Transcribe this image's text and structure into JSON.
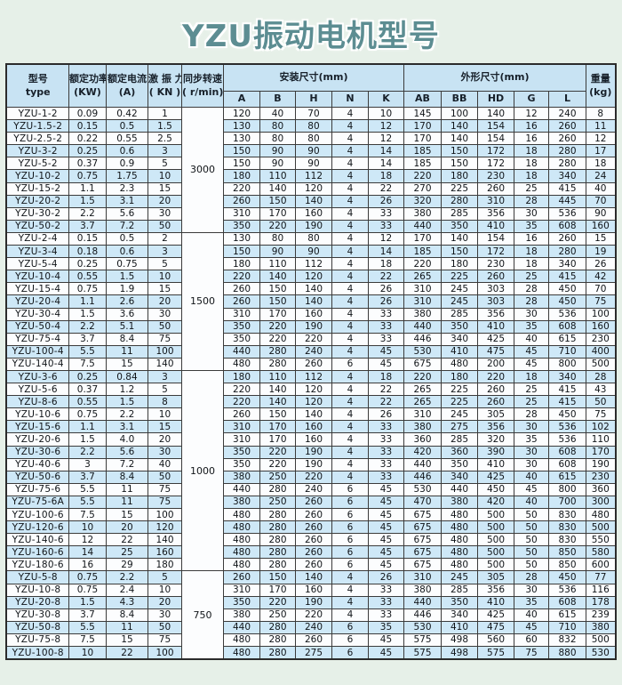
{
  "title": "YZU振动电机型号",
  "colors": {
    "page_background": "#e6f0e8",
    "title_color": "#5c8d92",
    "header_bg": "#c8e3f3",
    "row_alt_bg": "#cee8f7",
    "row_bg": "#fcfdfe",
    "border": "#3b3b3b"
  },
  "table": {
    "header": {
      "model": [
        "型号",
        "type"
      ],
      "power": [
        "额定功率",
        "(KW)"
      ],
      "current": [
        "额定电流",
        "(A)"
      ],
      "force": [
        "激 振 力",
        "( KN )"
      ],
      "speed": [
        "同步转速",
        "( r/min)"
      ],
      "install_group": "安装尺寸(mm)",
      "install_cols": [
        "A",
        "B",
        "H",
        "N",
        "K"
      ],
      "outline_group": "外形尺寸(mm)",
      "outline_cols": [
        "AB",
        "BB",
        "HD",
        "G",
        "L"
      ],
      "weight": [
        "重量",
        "(kg)"
      ]
    },
    "groups": [
      {
        "speed": "3000",
        "rows": [
          [
            "YZU-1-2",
            "0.09",
            "0.42",
            "1",
            "120",
            "40",
            "70",
            "4",
            "10",
            "145",
            "100",
            "140",
            "12",
            "240",
            "8"
          ],
          [
            "YZU-1.5-2",
            "0.15",
            "0.5",
            "1.5",
            "130",
            "80",
            "80",
            "4",
            "12",
            "170",
            "140",
            "154",
            "16",
            "260",
            "11"
          ],
          [
            "YZU-2.5-2",
            "0.22",
            "0.55",
            "2.5",
            "130",
            "80",
            "80",
            "4",
            "12",
            "170",
            "140",
            "154",
            "16",
            "260",
            "12"
          ],
          [
            "YZU-3-2",
            "0.25",
            "0.6",
            "3",
            "150",
            "90",
            "90",
            "4",
            "14",
            "185",
            "150",
            "172",
            "18",
            "280",
            "17"
          ],
          [
            "YZU-5-2",
            "0.37",
            "0.9",
            "5",
            "150",
            "90",
            "90",
            "4",
            "14",
            "185",
            "150",
            "172",
            "18",
            "280",
            "18"
          ],
          [
            "YZU-10-2",
            "0.75",
            "1.75",
            "10",
            "180",
            "110",
            "112",
            "4",
            "18",
            "220",
            "180",
            "230",
            "18",
            "340",
            "24"
          ],
          [
            "YZU-15-2",
            "1.1",
            "2.3",
            "15",
            "220",
            "140",
            "120",
            "4",
            "22",
            "270",
            "225",
            "260",
            "25",
            "415",
            "40"
          ],
          [
            "YZU-20-2",
            "1.5",
            "3.1",
            "20",
            "260",
            "150",
            "140",
            "4",
            "26",
            "320",
            "280",
            "310",
            "28",
            "445",
            "70"
          ],
          [
            "YZU-30-2",
            "2.2",
            "5.6",
            "30",
            "310",
            "170",
            "160",
            "4",
            "33",
            "380",
            "285",
            "356",
            "30",
            "536",
            "90"
          ],
          [
            "YZU-50-2",
            "3.7",
            "7.2",
            "50",
            "350",
            "220",
            "190",
            "4",
            "33",
            "440",
            "350",
            "410",
            "35",
            "608",
            "160"
          ]
        ]
      },
      {
        "speed": "1500",
        "rows": [
          [
            "YZU-2-4",
            "0.15",
            "0.5",
            "2",
            "130",
            "80",
            "80",
            "4",
            "12",
            "170",
            "140",
            "154",
            "16",
            "260",
            "15"
          ],
          [
            "YZU-3-4",
            "0.18",
            "0.6",
            "3",
            "150",
            "90",
            "90",
            "4",
            "14",
            "185",
            "150",
            "172",
            "18",
            "280",
            "19"
          ],
          [
            "YZU-5-4",
            "0.25",
            "0.75",
            "5",
            "180",
            "110",
            "112",
            "4",
            "18",
            "220",
            "180",
            "230",
            "18",
            "340",
            "26"
          ],
          [
            "YZU-10-4",
            "0.55",
            "1.5",
            "10",
            "220",
            "140",
            "120",
            "4",
            "22",
            "265",
            "225",
            "260",
            "25",
            "415",
            "42"
          ],
          [
            "YZU-15-4",
            "0.75",
            "1.9",
            "15",
            "260",
            "150",
            "140",
            "4",
            "26",
            "310",
            "245",
            "303",
            "28",
            "450",
            "70"
          ],
          [
            "YZU-20-4",
            "1.1",
            "2.6",
            "20",
            "260",
            "150",
            "140",
            "4",
            "26",
            "310",
            "245",
            "303",
            "28",
            "450",
            "75"
          ],
          [
            "YZU-30-4",
            "1.5",
            "3.6",
            "30",
            "310",
            "170",
            "160",
            "4",
            "33",
            "380",
            "285",
            "356",
            "30",
            "536",
            "100"
          ],
          [
            "YZU-50-4",
            "2.2",
            "5.1",
            "50",
            "350",
            "220",
            "190",
            "4",
            "33",
            "440",
            "350",
            "410",
            "35",
            "608",
            "160"
          ],
          [
            "YZU-75-4",
            "3.7",
            "8.4",
            "75",
            "350",
            "220",
            "220",
            "4",
            "33",
            "446",
            "340",
            "425",
            "40",
            "615",
            "230"
          ],
          [
            "YZU-100-4",
            "5.5",
            "11",
            "100",
            "440",
            "280",
            "240",
            "4",
            "45",
            "530",
            "410",
            "475",
            "45",
            "710",
            "400"
          ],
          [
            "YZU-140-4",
            "7.5",
            "15",
            "140",
            "480",
            "280",
            "260",
            "6",
            "45",
            "675",
            "480",
            "200",
            "45",
            "800",
            "500"
          ]
        ]
      },
      {
        "speed": "1000",
        "rows": [
          [
            "YZU-3-6",
            "0.25",
            "0.84",
            "3",
            "180",
            "110",
            "112",
            "4",
            "18",
            "220",
            "180",
            "220",
            "18",
            "340",
            "28"
          ],
          [
            "YZU-5-6",
            "0.37",
            "1.2",
            "5",
            "220",
            "140",
            "120",
            "4",
            "22",
            "265",
            "225",
            "260",
            "25",
            "415",
            "43"
          ],
          [
            "YZU-8-6",
            "0.55",
            "1.5",
            "8",
            "220",
            "140",
            "120",
            "4",
            "22",
            "265",
            "225",
            "260",
            "25",
            "415",
            "50"
          ],
          [
            "YZU-10-6",
            "0.75",
            "2.2",
            "10",
            "260",
            "150",
            "140",
            "4",
            "26",
            "310",
            "245",
            "305",
            "28",
            "450",
            "75"
          ],
          [
            "YZU-15-6",
            "1.1",
            "3.1",
            "15",
            "310",
            "170",
            "160",
            "4",
            "33",
            "380",
            "275",
            "356",
            "30",
            "536",
            "102"
          ],
          [
            "YZU-20-6",
            "1.5",
            "4.0",
            "20",
            "310",
            "170",
            "160",
            "4",
            "33",
            "360",
            "285",
            "320",
            "35",
            "536",
            "110"
          ],
          [
            "YZU-30-6",
            "2.2",
            "5.6",
            "30",
            "350",
            "220",
            "190",
            "4",
            "33",
            "420",
            "360",
            "390",
            "30",
            "608",
            "170"
          ],
          [
            "YZU-40-6",
            "3",
            "7.2",
            "40",
            "350",
            "220",
            "190",
            "4",
            "33",
            "440",
            "350",
            "410",
            "30",
            "608",
            "190"
          ],
          [
            "YZU-50-6",
            "3.7",
            "8.4",
            "50",
            "380",
            "250",
            "220",
            "4",
            "33",
            "446",
            "340",
            "425",
            "40",
            "615",
            "230"
          ],
          [
            "YZU-75-6",
            "5.5",
            "11",
            "75",
            "440",
            "280",
            "240",
            "6",
            "45",
            "530",
            "440",
            "450",
            "45",
            "800",
            "360"
          ],
          [
            "YZU-75-6A",
            "5.5",
            "11",
            "75",
            "380",
            "250",
            "260",
            "6",
            "45",
            "470",
            "380",
            "420",
            "40",
            "700",
            "300"
          ],
          [
            "YZU-100-6",
            "7.5",
            "15",
            "100",
            "480",
            "280",
            "260",
            "6",
            "45",
            "675",
            "480",
            "500",
            "50",
            "830",
            "480"
          ],
          [
            "YZU-120-6",
            "10",
            "20",
            "120",
            "480",
            "280",
            "260",
            "6",
            "45",
            "675",
            "480",
            "500",
            "50",
            "830",
            "500"
          ],
          [
            "YZU-140-6",
            "12",
            "22",
            "140",
            "480",
            "280",
            "260",
            "6",
            "45",
            "675",
            "480",
            "500",
            "50",
            "830",
            "550"
          ],
          [
            "YZU-160-6",
            "14",
            "25",
            "160",
            "480",
            "280",
            "260",
            "6",
            "45",
            "675",
            "480",
            "500",
            "50",
            "850",
            "580"
          ],
          [
            "YZU-180-6",
            "16",
            "29",
            "180",
            "480",
            "280",
            "260",
            "6",
            "45",
            "675",
            "480",
            "500",
            "50",
            "850",
            "600"
          ]
        ]
      },
      {
        "speed": "750",
        "rows": [
          [
            "YZU-5-8",
            "0.75",
            "2.2",
            "5",
            "260",
            "150",
            "140",
            "4",
            "26",
            "310",
            "245",
            "305",
            "28",
            "450",
            "77"
          ],
          [
            "YZU-10-8",
            "0.75",
            "2.4",
            "10",
            "310",
            "170",
            "160",
            "4",
            "33",
            "380",
            "285",
            "356",
            "30",
            "536",
            "116"
          ],
          [
            "YZU-20-8",
            "1.5",
            "4.3",
            "20",
            "350",
            "220",
            "190",
            "4",
            "33",
            "440",
            "350",
            "410",
            "35",
            "608",
            "178"
          ],
          [
            "YZU-30-8",
            "3.7",
            "8.4",
            "30",
            "380",
            "250",
            "220",
            "4",
            "33",
            "446",
            "340",
            "425",
            "40",
            "615",
            "239"
          ],
          [
            "YZU-50-8",
            "5.5",
            "11",
            "50",
            "440",
            "280",
            "240",
            "6",
            "35",
            "530",
            "410",
            "475",
            "45",
            "710",
            "380"
          ],
          [
            "YZU-75-8",
            "7.5",
            "15",
            "75",
            "480",
            "280",
            "260",
            "6",
            "45",
            "575",
            "498",
            "560",
            "60",
            "832",
            "500"
          ],
          [
            "YZU-100-8",
            "10",
            "22",
            "100",
            "480",
            "280",
            "275",
            "6",
            "45",
            "575",
            "498",
            "575",
            "75",
            "880",
            "530"
          ]
        ]
      }
    ]
  }
}
